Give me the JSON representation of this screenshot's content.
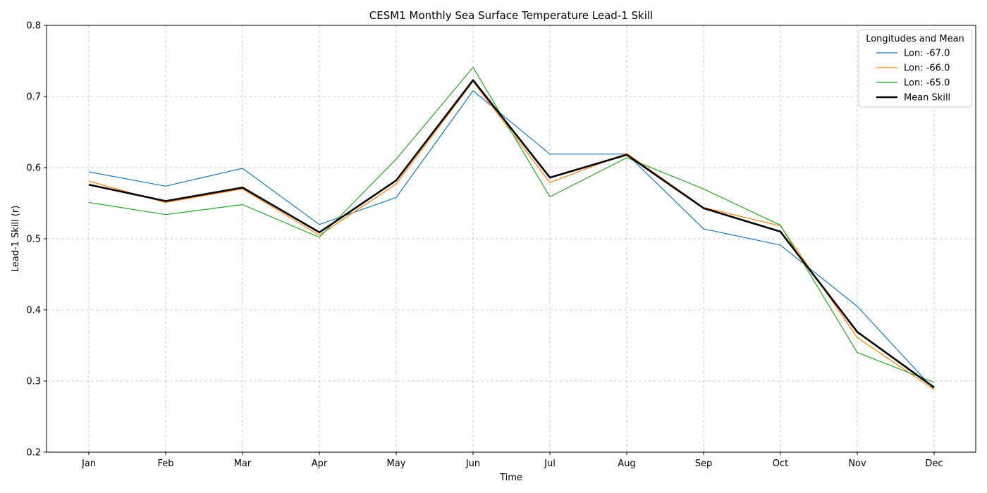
{
  "chart_data": {
    "type": "line",
    "title": "CESM1 Monthly Sea Surface Temperature Lead-1 Skill",
    "xlabel": "Time",
    "ylabel": "Lead-1 Skill (r)",
    "ylim": [
      0.2,
      0.8
    ],
    "yticks": [
      "0.2",
      "0.3",
      "0.4",
      "0.5",
      "0.6",
      "0.7",
      "0.8"
    ],
    "grid": true,
    "legend_title": "Longitudes and Mean",
    "legend_position": "top-right",
    "categories": [
      "Jan",
      "Feb",
      "Mar",
      "Apr",
      "May",
      "Jun",
      "Jul",
      "Aug",
      "Sep",
      "Oct",
      "Nov",
      "Dec"
    ],
    "series": [
      {
        "name": "Lon: -67.0",
        "color": "#1f77b4",
        "values": [
          0.594,
          0.574,
          0.599,
          0.52,
          0.558,
          0.708,
          0.619,
          0.619,
          0.514,
          0.491,
          0.405,
          0.288
        ]
      },
      {
        "name": "Lon: -66.0",
        "color": "#ff7f0e",
        "values": [
          0.581,
          0.551,
          0.57,
          0.505,
          0.577,
          0.721,
          0.579,
          0.62,
          0.544,
          0.518,
          0.361,
          0.288
        ]
      },
      {
        "name": "Lon: -65.0",
        "color": "#2ca02c",
        "values": [
          0.551,
          0.534,
          0.548,
          0.502,
          0.612,
          0.741,
          0.559,
          0.614,
          0.57,
          0.519,
          0.34,
          0.298
        ]
      },
      {
        "name": "Mean Skill",
        "color": "#000000",
        "values": [
          0.576,
          0.553,
          0.572,
          0.509,
          0.582,
          0.723,
          0.586,
          0.618,
          0.543,
          0.51,
          0.369,
          0.291
        ]
      }
    ]
  }
}
